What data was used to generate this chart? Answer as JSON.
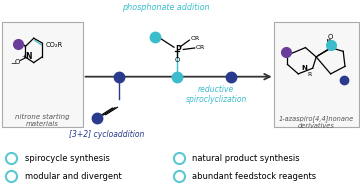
{
  "background_color": "#ffffff",
  "legend_items": [
    "spirocycle synthesis",
    "modular and divergent",
    "natural product synthesis",
    "abundant feedstock reagents"
  ],
  "legend_color": "#5bc8d0",
  "legend_marker_size": 8,
  "legend_fontsize": 6.0,
  "arrow_color": "#333333",
  "teal_color": "#3bbdcc",
  "dark_blue_color": "#2a3a8c",
  "purple_color": "#6a3d9a",
  "phosphonate_text": "phosphonate addition",
  "cycloaddition_text": "[3+2] cycloaddition",
  "reductive_text": "reductive\nspiroclyclization",
  "nitrone_text": "nitrone starting\nmaterials",
  "product_text": "1-azaspiro[4,4]nonane\nderivatives"
}
